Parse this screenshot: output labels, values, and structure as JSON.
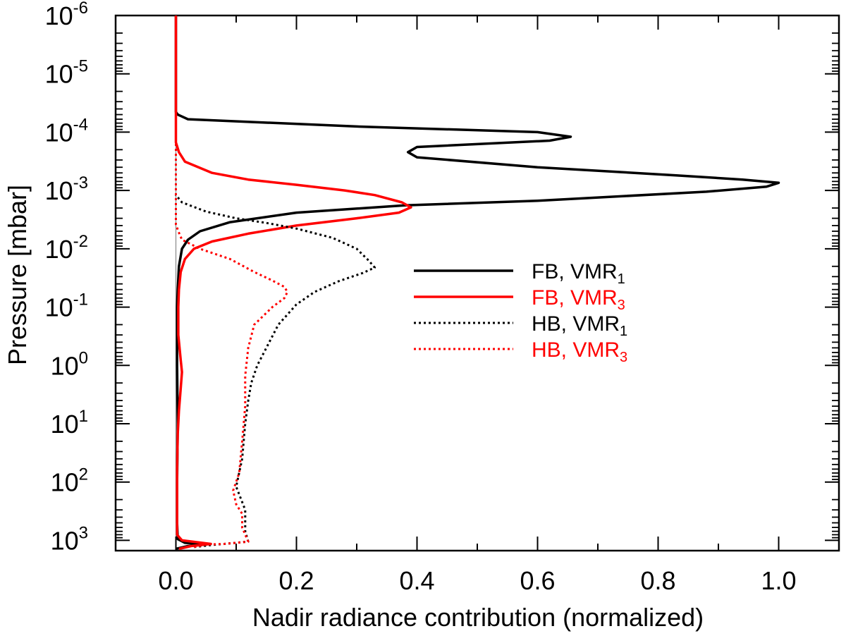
{
  "chart_data": {
    "type": "line",
    "title": "",
    "xlabel": "Nadir radiance contribution (normalized)",
    "ylabel": "Pressure [mbar]",
    "xlim": [
      -0.1,
      1.1
    ],
    "ylim": [
      1e-06,
      1500
    ],
    "yscale": "log",
    "yinverted": true,
    "xticks": [
      {
        "value": 0.0,
        "label": "0.0"
      },
      {
        "value": 0.2,
        "label": "0.2"
      },
      {
        "value": 0.4,
        "label": "0.4"
      },
      {
        "value": 0.6,
        "label": "0.6"
      },
      {
        "value": 0.8,
        "label": "0.8"
      },
      {
        "value": 1.0,
        "label": "1.0"
      }
    ],
    "yticks": [
      {
        "value": 1e-06,
        "base": "10",
        "exp": "-6"
      },
      {
        "value": 1e-05,
        "base": "10",
        "exp": "-5"
      },
      {
        "value": 0.0001,
        "base": "10",
        "exp": "-4"
      },
      {
        "value": 0.001,
        "base": "10",
        "exp": "-3"
      },
      {
        "value": 0.01,
        "base": "10",
        "exp": "-2"
      },
      {
        "value": 0.1,
        "base": "10",
        "exp": "-1"
      },
      {
        "value": 1,
        "base": "10",
        "exp": "0"
      },
      {
        "value": 10,
        "base": "10",
        "exp": "1"
      },
      {
        "value": 100,
        "base": "10",
        "exp": "2"
      },
      {
        "value": 1000,
        "base": "10",
        "exp": "3"
      }
    ],
    "legend": {
      "position": "center-right",
      "entries": [
        {
          "label_main": "FB, VMR",
          "label_sub": "1",
          "series": 0
        },
        {
          "label_main": "FB, VMR",
          "label_sub": "3",
          "series": 1
        },
        {
          "label_main": "HB, VMR",
          "label_sub": "1",
          "series": 2
        },
        {
          "label_main": "HB, VMR",
          "label_sub": "3",
          "series": 3
        }
      ]
    },
    "series": [
      {
        "name": "FB, VMR1",
        "color": "#000000",
        "style": "solid",
        "points": [
          [
            0,
            1e-06
          ],
          [
            0,
            4.5e-05
          ],
          [
            0.003,
            5e-05
          ],
          [
            0.02,
            6e-05
          ],
          [
            0.3,
            8e-05
          ],
          [
            0.6,
            0.0001
          ],
          [
            0.655,
            0.00012
          ],
          [
            0.62,
            0.00014
          ],
          [
            0.4,
            0.00018
          ],
          [
            0.385,
            0.00022
          ],
          [
            0.4,
            0.00027
          ],
          [
            0.6,
            0.0004
          ],
          [
            0.83,
            0.00055
          ],
          [
            0.94,
            0.00065
          ],
          [
            1.0,
            0.00074
          ],
          [
            0.98,
            0.00086
          ],
          [
            0.88,
            0.00105
          ],
          [
            0.6,
            0.0015
          ],
          [
            0.38,
            0.0018
          ],
          [
            0.2,
            0.0024
          ],
          [
            0.09,
            0.0035
          ],
          [
            0.04,
            0.005
          ],
          [
            0.02,
            0.007
          ],
          [
            0.01,
            0.01
          ],
          [
            0.005,
            0.02
          ],
          [
            0.003,
            0.05
          ],
          [
            0.002,
            0.1
          ],
          [
            0.002,
            1
          ],
          [
            0.003,
            10
          ],
          [
            0.002,
            100
          ],
          [
            0.002,
            500
          ],
          [
            0.003,
            950
          ],
          [
            0.015,
            1100
          ],
          [
            0.05,
            1180
          ],
          [
            0.02,
            1250
          ],
          [
            0,
            1400
          ]
        ]
      },
      {
        "name": "FB, VMR3",
        "color": "#ff0000",
        "style": "solid",
        "points": [
          [
            0,
            1e-06
          ],
          [
            0,
            0.00015
          ],
          [
            0.005,
            0.00022
          ],
          [
            0.015,
            0.00032
          ],
          [
            0.06,
            0.0005
          ],
          [
            0.12,
            0.00065
          ],
          [
            0.2,
            0.0008
          ],
          [
            0.28,
            0.001
          ],
          [
            0.33,
            0.0012
          ],
          [
            0.375,
            0.0016
          ],
          [
            0.39,
            0.00195
          ],
          [
            0.37,
            0.0024
          ],
          [
            0.3,
            0.003
          ],
          [
            0.2,
            0.004
          ],
          [
            0.12,
            0.0055
          ],
          [
            0.06,
            0.0075
          ],
          [
            0.03,
            0.01
          ],
          [
            0.015,
            0.015
          ],
          [
            0.008,
            0.025
          ],
          [
            0.005,
            0.05
          ],
          [
            0.004,
            0.1
          ],
          [
            0.004,
            0.3
          ],
          [
            0.008,
            0.8
          ],
          [
            0.01,
            1.3
          ],
          [
            0.008,
            2.5
          ],
          [
            0.005,
            6
          ],
          [
            0.003,
            15
          ],
          [
            0.002,
            60
          ],
          [
            0.002,
            300
          ],
          [
            0.002,
            800
          ],
          [
            0.01,
            1000
          ],
          [
            0.058,
            1150
          ],
          [
            0.025,
            1250
          ],
          [
            0.005,
            1400
          ]
        ]
      },
      {
        "name": "HB, VMR1",
        "color": "#000000",
        "style": "dotted",
        "points": [
          [
            0,
            1e-06
          ],
          [
            0,
            0.0012
          ],
          [
            0.01,
            0.0016
          ],
          [
            0.05,
            0.0023
          ],
          [
            0.1,
            0.003
          ],
          [
            0.15,
            0.0036
          ],
          [
            0.2,
            0.0045
          ],
          [
            0.26,
            0.0065
          ],
          [
            0.3,
            0.01
          ],
          [
            0.32,
            0.016
          ],
          [
            0.33,
            0.021
          ],
          [
            0.31,
            0.026
          ],
          [
            0.27,
            0.036
          ],
          [
            0.23,
            0.055
          ],
          [
            0.2,
            0.09
          ],
          [
            0.17,
            0.2
          ],
          [
            0.15,
            0.5
          ],
          [
            0.135,
            1
          ],
          [
            0.125,
            2
          ],
          [
            0.12,
            4
          ],
          [
            0.115,
            10
          ],
          [
            0.11,
            40
          ],
          [
            0.1,
            120
          ],
          [
            0.11,
            220
          ],
          [
            0.115,
            300
          ],
          [
            0.115,
            700
          ],
          [
            0.12,
            1050
          ],
          [
            0.08,
            1150
          ],
          [
            0.06,
            1200
          ],
          [
            0.03,
            1300
          ]
        ]
      },
      {
        "name": "HB, VMR3",
        "color": "#ff0000",
        "style": "dotted",
        "points": [
          [
            0,
            1e-06
          ],
          [
            0,
            0.0038
          ],
          [
            0.004,
            0.005
          ],
          [
            0.01,
            0.007
          ],
          [
            0.04,
            0.01
          ],
          [
            0.09,
            0.015
          ],
          [
            0.13,
            0.025
          ],
          [
            0.16,
            0.035
          ],
          [
            0.18,
            0.045
          ],
          [
            0.185,
            0.055
          ],
          [
            0.18,
            0.07
          ],
          [
            0.16,
            0.1
          ],
          [
            0.13,
            0.2
          ],
          [
            0.12,
            0.5
          ],
          [
            0.115,
            1.5
          ],
          [
            0.115,
            5
          ],
          [
            0.11,
            20
          ],
          [
            0.105,
            70
          ],
          [
            0.095,
            140
          ],
          [
            0.1,
            240
          ],
          [
            0.11,
            350
          ],
          [
            0.11,
            600
          ],
          [
            0.12,
            1050
          ],
          [
            0.08,
            1150
          ],
          [
            0.05,
            1180
          ],
          [
            0.03,
            1300
          ]
        ]
      }
    ]
  }
}
